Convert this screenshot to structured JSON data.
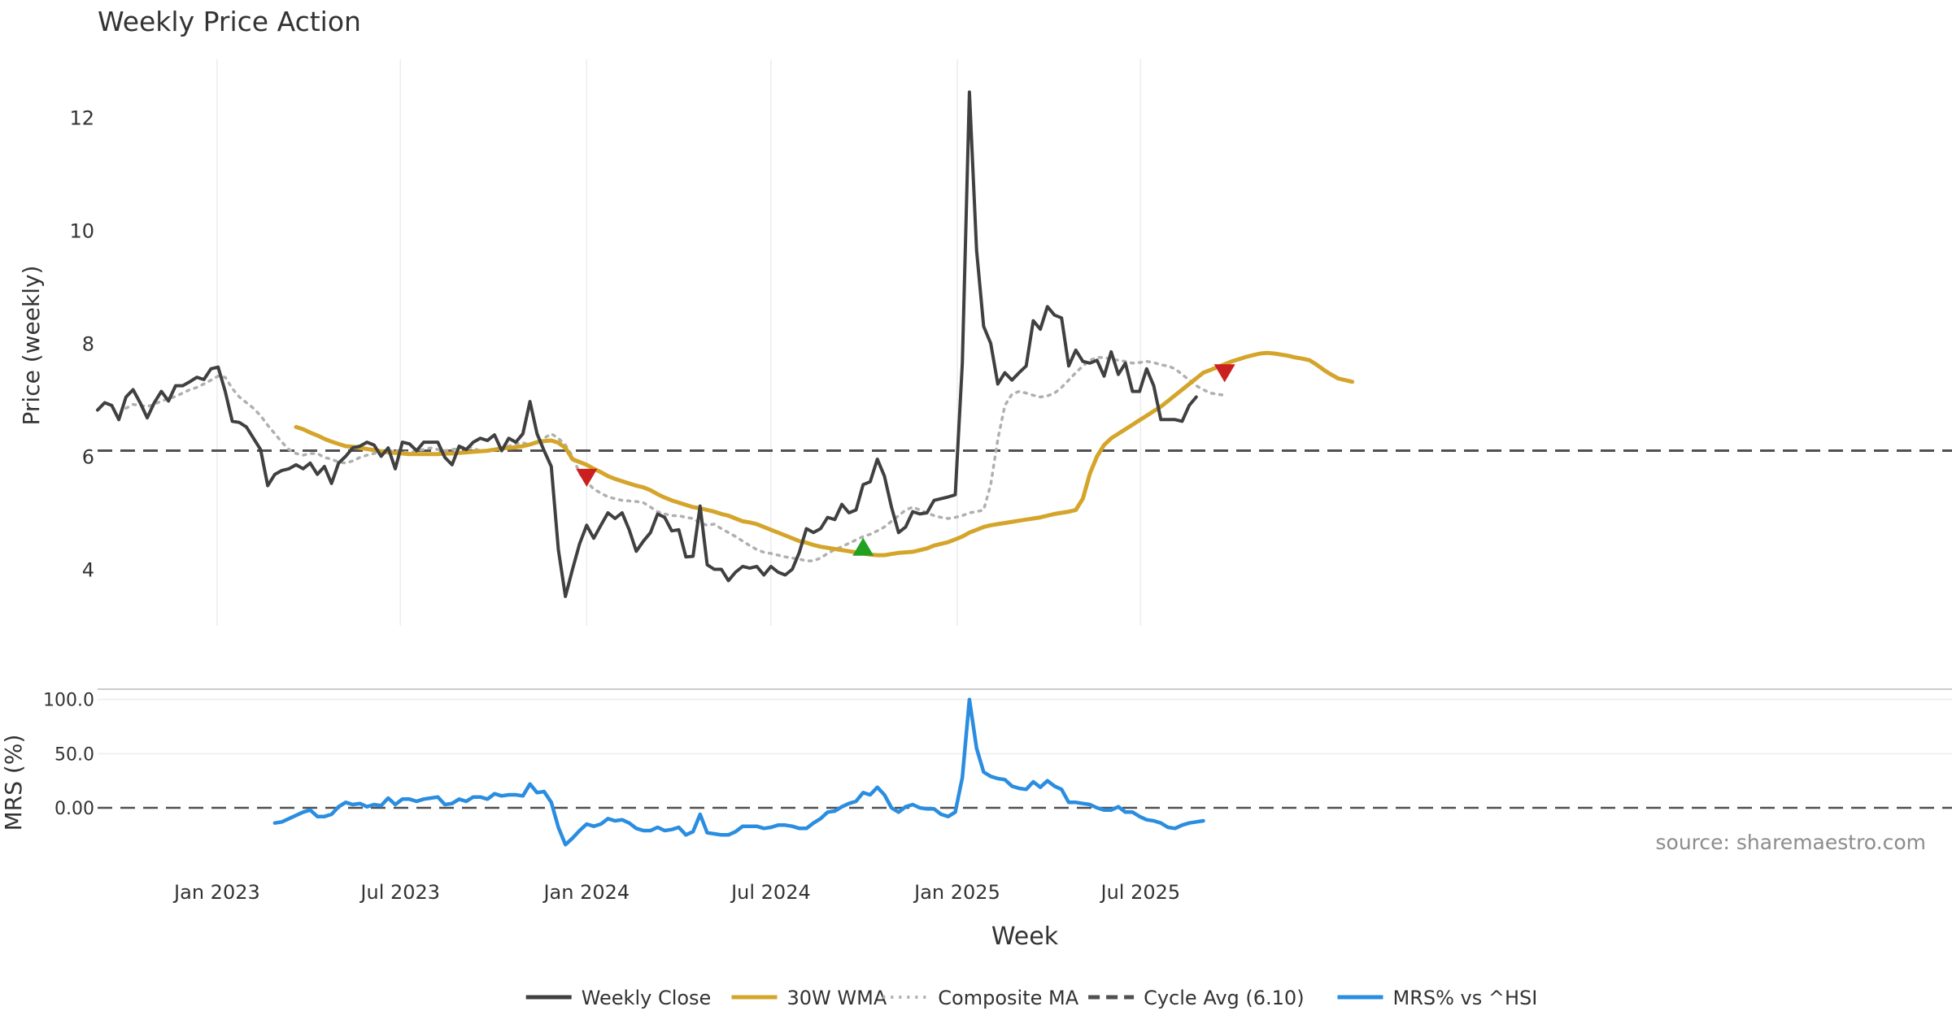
{
  "chart_data": [
    {
      "type": "line",
      "panel": "price",
      "title": "Weekly Price Action",
      "ylabel": "Price (weekly)",
      "xlabel": "Week",
      "ylim": [
        3.0,
        13.0
      ],
      "yticks": [
        4,
        6,
        8,
        10,
        12
      ],
      "grid": "vertical",
      "x_start": "2022-09-05",
      "x_step_days": 7,
      "series": [
        {
          "name": "Weekly Close",
          "color": "#404040",
          "style": "solid",
          "start_index": 0,
          "values": [
            6.82,
            6.95,
            6.9,
            6.65,
            7.05,
            7.18,
            6.95,
            6.68,
            6.95,
            7.15,
            6.98,
            7.25,
            7.25,
            7.32,
            7.4,
            7.36,
            7.55,
            7.58,
            7.15,
            6.62,
            6.6,
            6.52,
            6.32,
            6.12,
            5.48,
            5.68,
            5.75,
            5.78,
            5.85,
            5.78,
            5.88,
            5.68,
            5.82,
            5.52,
            5.88,
            6.0,
            6.15,
            6.18,
            6.25,
            6.2,
            6.0,
            6.15,
            5.78,
            6.25,
            6.22,
            6.1,
            6.25,
            6.25,
            6.25,
            5.98,
            5.85,
            6.18,
            6.12,
            6.25,
            6.32,
            6.28,
            6.38,
            6.1,
            6.32,
            6.25,
            6.4,
            6.97,
            6.4,
            6.1,
            5.82,
            4.35,
            3.52,
            4.0,
            4.45,
            4.78,
            4.55,
            4.78,
            5.0,
            4.9,
            5.0,
            4.7,
            4.32,
            4.5,
            4.65,
            4.98,
            4.92,
            4.68,
            4.7,
            4.22,
            4.23,
            5.12,
            4.08,
            4.0,
            4.0,
            3.8,
            3.95,
            4.05,
            4.02,
            4.05,
            3.9,
            4.05,
            3.95,
            3.9,
            4.0,
            4.3,
            4.72,
            4.65,
            4.72,
            4.92,
            4.88,
            5.15,
            5.0,
            5.05,
            5.5,
            5.55,
            5.95,
            5.65,
            5.1,
            4.65,
            4.75,
            5.02,
            4.98,
            5.0,
            5.22,
            5.25,
            5.28,
            5.32,
            7.65,
            12.45,
            9.65,
            8.3,
            8.0,
            7.28,
            7.48,
            7.35,
            7.48,
            7.6,
            8.4,
            8.25,
            8.65,
            8.5,
            8.45,
            7.6,
            7.88,
            7.68,
            7.65,
            7.7,
            7.42,
            7.85,
            7.45,
            7.65,
            7.15,
            7.15,
            7.55,
            7.25,
            6.65,
            6.65,
            6.65,
            6.62,
            6.9,
            7.05
          ]
        },
        {
          "name": "30W WMA",
          "color": "#d4a52a",
          "style": "solid",
          "start_index": 28,
          "values": [
            6.52,
            6.48,
            6.42,
            6.37,
            6.31,
            6.26,
            6.22,
            6.18,
            6.17,
            6.15,
            6.13,
            6.11,
            6.09,
            6.07,
            6.06,
            6.05,
            6.04,
            6.04,
            6.04,
            6.04,
            6.04,
            6.05,
            6.05,
            6.06,
            6.07,
            6.08,
            6.09,
            6.1,
            6.12,
            6.14,
            6.15,
            6.16,
            6.18,
            6.21,
            6.25,
            6.27,
            6.28,
            6.24,
            6.15,
            5.95,
            5.9,
            5.85,
            5.78,
            5.72,
            5.65,
            5.6,
            5.56,
            5.52,
            5.48,
            5.45,
            5.4,
            5.33,
            5.27,
            5.22,
            5.18,
            5.14,
            5.1,
            5.08,
            5.05,
            5.02,
            4.98,
            4.95,
            4.9,
            4.85,
            4.83,
            4.8,
            4.75,
            4.7,
            4.65,
            4.6,
            4.55,
            4.5,
            4.47,
            4.43,
            4.4,
            4.38,
            4.36,
            4.34,
            4.32,
            4.3,
            4.28,
            4.26,
            4.25,
            4.25,
            4.27,
            4.29,
            4.3,
            4.31,
            4.34,
            4.37,
            4.42,
            4.45,
            4.48,
            4.53,
            4.58,
            4.65,
            4.7,
            4.75,
            4.78,
            4.8,
            4.82,
            4.84,
            4.86,
            4.88,
            4.9,
            4.92,
            4.95,
            4.98,
            5.0,
            5.02,
            5.05,
            5.25,
            5.7,
            6.0,
            6.2,
            6.32,
            6.4,
            6.48,
            6.56,
            6.64,
            6.72,
            6.8,
            6.88,
            6.98,
            7.08,
            7.18,
            7.28,
            7.38,
            7.48,
            7.53,
            7.58,
            7.63,
            7.68,
            7.72,
            7.76,
            7.79,
            7.82,
            7.83,
            7.82,
            7.8,
            7.78,
            7.75,
            7.73,
            7.7,
            7.62,
            7.53,
            7.45,
            7.38,
            7.35,
            7.32
          ]
        },
        {
          "name": "Composite MA",
          "color": "#b0b0b0",
          "style": "dotted",
          "start_index": 4,
          "values": [
            6.85,
            6.92,
            6.9,
            6.88,
            6.92,
            6.98,
            7.02,
            7.06,
            7.12,
            7.18,
            7.22,
            7.28,
            7.35,
            7.42,
            7.4,
            7.2,
            7.05,
            6.95,
            6.85,
            6.72,
            6.55,
            6.4,
            6.25,
            6.12,
            6.05,
            6.02,
            6.05,
            6.05,
            5.98,
            5.95,
            5.9,
            5.88,
            5.92,
            5.98,
            6.02,
            6.05,
            6.08,
            6.1,
            6.1,
            6.08,
            6.06,
            6.1,
            6.12,
            6.15,
            6.12,
            6.1,
            6.12,
            6.14,
            6.18,
            6.14,
            6.1,
            6.1,
            6.12,
            6.15,
            6.18,
            6.22,
            6.24,
            6.2,
            6.24,
            6.32,
            6.4,
            6.32,
            6.2,
            6.0,
            5.7,
            5.55,
            5.42,
            5.35,
            5.28,
            5.25,
            5.22,
            5.21,
            5.2,
            5.18,
            5.1,
            5.02,
            4.98,
            4.95,
            4.95,
            4.92,
            4.9,
            4.82,
            4.78,
            4.8,
            4.72,
            4.65,
            4.58,
            4.5,
            4.42,
            4.35,
            4.3,
            4.28,
            4.25,
            4.22,
            4.2,
            4.18,
            4.15,
            4.15,
            4.2,
            4.28,
            4.35,
            4.4,
            4.46,
            4.52,
            4.58,
            4.62,
            4.68,
            4.75,
            4.85,
            4.95,
            5.05,
            5.1,
            5.05,
            5.0,
            4.95,
            4.92,
            4.9,
            4.92,
            4.95,
            5.0,
            5.02,
            5.05,
            5.5,
            6.3,
            6.9,
            7.1,
            7.15,
            7.12,
            7.08,
            7.05,
            7.07,
            7.12,
            7.22,
            7.35,
            7.48,
            7.6,
            7.7,
            7.75,
            7.75,
            7.72,
            7.7,
            7.68,
            7.65,
            7.66,
            7.68,
            7.66,
            7.62,
            7.6,
            7.55,
            7.45,
            7.35,
            7.25,
            7.18,
            7.12,
            7.1,
            7.08
          ]
        },
        {
          "name": "Cycle Avg (6.10)",
          "color": "#505050",
          "style": "dashed",
          "hline": 6.1
        }
      ],
      "annotations": [
        {
          "type": "sell-marker",
          "week_index": 69,
          "y": 5.62,
          "color": "#cc1f1f"
        },
        {
          "type": "buy-marker",
          "week_index": 108,
          "y": 4.4,
          "color": "#22a022"
        },
        {
          "type": "sell-marker",
          "week_index": 159,
          "y": 7.47,
          "color": "#cc1f1f"
        }
      ]
    },
    {
      "type": "line",
      "panel": "mrs",
      "ylabel": "MRS (%)",
      "xlabel": "Week",
      "ylim": [
        -42,
        108
      ],
      "yticks": [
        100.0,
        50.0,
        0.0
      ],
      "ytick_labels": [
        "100.0",
        "50.0",
        "0.00"
      ],
      "zero_line": 0,
      "series": [
        {
          "name": "MRS% vs ^HSI",
          "color": "#2a8de0",
          "style": "solid",
          "start_index": 25,
          "values": [
            -14,
            -13,
            -10,
            -7,
            -4,
            -2,
            -8,
            -8,
            -6,
            1,
            5,
            3,
            4,
            1,
            3,
            2,
            9,
            3,
            8,
            8,
            6,
            8,
            9,
            10,
            3,
            4,
            8,
            6,
            10,
            10,
            8,
            13,
            11,
            12,
            12,
            11,
            22,
            14,
            15,
            5,
            -18,
            -34,
            -28,
            -21,
            -15,
            -17,
            -15,
            -10,
            -12,
            -11,
            -14,
            -19,
            -21,
            -21,
            -18,
            -21,
            -20,
            -18,
            -25,
            -22,
            -6,
            -23,
            -24,
            -25,
            -25,
            -22,
            -17,
            -17,
            -17,
            -19,
            -18,
            -16,
            -16,
            -17,
            -19,
            -19,
            -14,
            -10,
            -4,
            -3,
            1,
            4,
            6,
            14,
            12,
            19,
            12,
            0,
            -4,
            1,
            3,
            0,
            -1,
            -1,
            -6,
            -8,
            -4,
            28,
            100,
            55,
            33,
            29,
            27,
            26,
            20,
            18,
            17,
            24,
            19,
            25,
            20,
            17,
            5,
            5,
            4,
            3,
            0,
            -2,
            -2,
            1,
            -4,
            -4,
            -8,
            -11,
            -12,
            -14,
            -18,
            -19,
            -16,
            -14,
            -13,
            -12
          ]
        }
      ]
    },
    {
      "type": "axis",
      "panel": "shared-x",
      "xlabel": "Week",
      "tick_labels": [
        {
          "label": "Jan 2023",
          "date": "2023-01-01"
        },
        {
          "label": "Jul 2023",
          "date": "2023-07-01"
        },
        {
          "label": "Jan 2024",
          "date": "2024-01-01"
        },
        {
          "label": "Jul 2024",
          "date": "2024-07-01"
        },
        {
          "label": "Jan 2025",
          "date": "2025-01-01"
        },
        {
          "label": "Jul 2025",
          "date": "2025-07-01"
        }
      ]
    }
  ],
  "source_note": "source: sharemaestro.com",
  "legend": {
    "placement": "bottom-center",
    "entries": [
      {
        "label": "Weekly Close",
        "color": "#404040",
        "style": "solid"
      },
      {
        "label": "30W WMA",
        "color": "#d4a52a",
        "style": "solid"
      },
      {
        "label": "Composite MA",
        "color": "#b0b0b0",
        "style": "dotted"
      },
      {
        "label": "Cycle Avg (6.10)",
        "color": "#505050",
        "style": "dashed"
      },
      {
        "label": "MRS% vs ^HSI",
        "color": "#2a8de0",
        "style": "solid"
      }
    ]
  }
}
